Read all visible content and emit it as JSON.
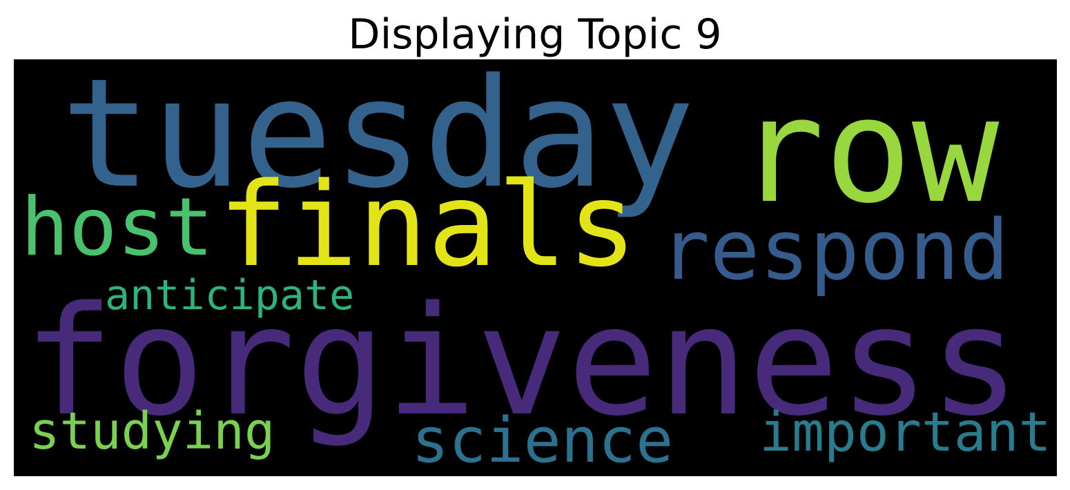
{
  "figure": {
    "title": "Displaying Topic 9"
  },
  "wordcloud": {
    "words": [
      {
        "key": "tuesday",
        "text": "tuesday",
        "color": "#33638d"
      },
      {
        "key": "row",
        "text": "row",
        "color": "#98d83e"
      },
      {
        "key": "finals",
        "text": "finals",
        "color": "#e3e418"
      },
      {
        "key": "host",
        "text": "host",
        "color": "#4ac16d"
      },
      {
        "key": "respond",
        "text": "respond",
        "color": "#365c8d"
      },
      {
        "key": "anticipate",
        "text": "anticipate",
        "color": "#2eb37c"
      },
      {
        "key": "forgiveness",
        "text": "forgiveness",
        "color": "#472a7a"
      },
      {
        "key": "studying",
        "text": "studying",
        "color": "#7ad151"
      },
      {
        "key": "science",
        "text": "science",
        "color": "#2c728e"
      },
      {
        "key": "important",
        "text": "important",
        "color": "#287c8e"
      }
    ]
  }
}
